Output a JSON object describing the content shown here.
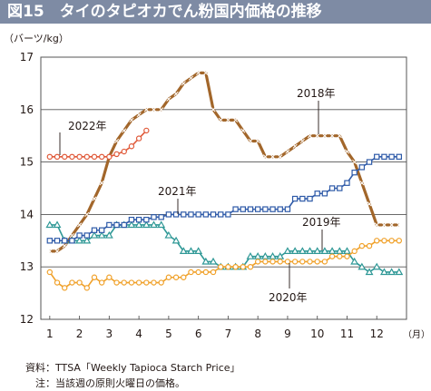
{
  "header": {
    "title": "図15　タイのタピオカでん粉国内価格の推移"
  },
  "notes": {
    "source": "資料：TTSA「Weekly Tapioca Starch Price」",
    "note": "　注：当該週の原則火曜日の価格。"
  },
  "chart_data": {
    "type": "line",
    "title": "図15　タイのタピオカでん粉国内価格の推移",
    "xlabel": "（月）",
    "ylabel": "（バーツ/kg）",
    "xlim": [
      0.7,
      13.0
    ],
    "ylim": [
      12,
      17
    ],
    "yticks": [
      12,
      13,
      14,
      15,
      16,
      17
    ],
    "xticks": [
      "1",
      "2",
      "3",
      "4",
      "5",
      "6",
      "7",
      "8",
      "9",
      "10",
      "11",
      "12"
    ],
    "grid": "horizontal",
    "series": [
      {
        "name": "2018年",
        "color": "#a2662a",
        "marker": "x",
        "points": [
          [
            1,
            13.3
          ],
          [
            1.25,
            13.3
          ],
          [
            1.5,
            13.4
          ],
          [
            1.75,
            13.6
          ],
          [
            2,
            13.8
          ],
          [
            2.25,
            14.0
          ],
          [
            2.5,
            14.3
          ],
          [
            2.75,
            14.6
          ],
          [
            3,
            15.1
          ],
          [
            3.25,
            15.4
          ],
          [
            3.5,
            15.6
          ],
          [
            3.75,
            15.8
          ],
          [
            4,
            15.9
          ],
          [
            4.25,
            16.0
          ],
          [
            4.5,
            16.0
          ],
          [
            4.75,
            16.0
          ],
          [
            5,
            16.2
          ],
          [
            5.25,
            16.3
          ],
          [
            5.5,
            16.5
          ],
          [
            5.75,
            16.6
          ],
          [
            6,
            16.7
          ],
          [
            6.25,
            16.7
          ],
          [
            6.5,
            16.0
          ],
          [
            6.75,
            15.8
          ],
          [
            7,
            15.8
          ],
          [
            7.25,
            15.8
          ],
          [
            7.5,
            15.6
          ],
          [
            7.75,
            15.4
          ],
          [
            8,
            15.4
          ],
          [
            8.25,
            15.1
          ],
          [
            8.5,
            15.1
          ],
          [
            8.75,
            15.1
          ],
          [
            9,
            15.2
          ],
          [
            9.25,
            15.3
          ],
          [
            9.5,
            15.4
          ],
          [
            9.75,
            15.5
          ],
          [
            10,
            15.5
          ],
          [
            10.25,
            15.5
          ],
          [
            10.5,
            15.5
          ],
          [
            10.75,
            15.5
          ],
          [
            11,
            15.2
          ],
          [
            11.25,
            15.0
          ],
          [
            11.5,
            14.6
          ],
          [
            11.75,
            14.2
          ],
          [
            12,
            13.8
          ],
          [
            12.25,
            13.8
          ],
          [
            12.5,
            13.8
          ],
          [
            12.75,
            13.8
          ]
        ]
      },
      {
        "name": "2019年",
        "color": "#2f9896",
        "marker": "triangle",
        "points": [
          [
            1,
            13.8
          ],
          [
            1.25,
            13.8
          ],
          [
            1.5,
            13.5
          ],
          [
            1.75,
            13.5
          ],
          [
            2,
            13.5
          ],
          [
            2.25,
            13.5
          ],
          [
            2.5,
            13.6
          ],
          [
            2.75,
            13.6
          ],
          [
            3,
            13.6
          ],
          [
            3.25,
            13.8
          ],
          [
            3.5,
            13.8
          ],
          [
            3.75,
            13.8
          ],
          [
            4,
            13.8
          ],
          [
            4.25,
            13.8
          ],
          [
            4.5,
            13.8
          ],
          [
            4.75,
            13.8
          ],
          [
            5,
            13.6
          ],
          [
            5.25,
            13.5
          ],
          [
            5.5,
            13.3
          ],
          [
            5.75,
            13.3
          ],
          [
            6,
            13.3
          ],
          [
            6.25,
            13.1
          ],
          [
            6.5,
            13.1
          ],
          [
            6.75,
            13.0
          ],
          [
            7,
            13.0
          ],
          [
            7.25,
            13.0
          ],
          [
            7.5,
            13.0
          ],
          [
            7.75,
            13.2
          ],
          [
            8,
            13.2
          ],
          [
            8.25,
            13.2
          ],
          [
            8.5,
            13.2
          ],
          [
            8.75,
            13.2
          ],
          [
            9,
            13.3
          ],
          [
            9.25,
            13.3
          ],
          [
            9.5,
            13.3
          ],
          [
            9.75,
            13.3
          ],
          [
            10,
            13.3
          ],
          [
            10.25,
            13.3
          ],
          [
            10.5,
            13.3
          ],
          [
            10.75,
            13.3
          ],
          [
            11,
            13.3
          ],
          [
            11.25,
            13.1
          ],
          [
            11.5,
            13.0
          ],
          [
            11.75,
            12.9
          ],
          [
            12,
            13.0
          ],
          [
            12.25,
            12.9
          ],
          [
            12.5,
            12.9
          ],
          [
            12.75,
            12.9
          ]
        ]
      },
      {
        "name": "2020年",
        "color": "#f0a12a",
        "marker": "circle",
        "points": [
          [
            1,
            12.9
          ],
          [
            1.25,
            12.7
          ],
          [
            1.5,
            12.6
          ],
          [
            1.75,
            12.7
          ],
          [
            2,
            12.7
          ],
          [
            2.25,
            12.6
          ],
          [
            2.5,
            12.8
          ],
          [
            2.75,
            12.7
          ],
          [
            3,
            12.8
          ],
          [
            3.25,
            12.7
          ],
          [
            3.5,
            12.7
          ],
          [
            3.75,
            12.7
          ],
          [
            4,
            12.7
          ],
          [
            4.25,
            12.7
          ],
          [
            4.5,
            12.7
          ],
          [
            4.75,
            12.7
          ],
          [
            5,
            12.8
          ],
          [
            5.25,
            12.8
          ],
          [
            5.5,
            12.8
          ],
          [
            5.75,
            12.9
          ],
          [
            6,
            12.9
          ],
          [
            6.25,
            12.9
          ],
          [
            6.5,
            12.9
          ],
          [
            6.75,
            13.0
          ],
          [
            7,
            13.0
          ],
          [
            7.25,
            13.0
          ],
          [
            7.5,
            13.0
          ],
          [
            7.75,
            13.0
          ],
          [
            8,
            13.1
          ],
          [
            8.25,
            13.1
          ],
          [
            8.5,
            13.1
          ],
          [
            8.75,
            13.1
          ],
          [
            9,
            13.1
          ],
          [
            9.25,
            13.1
          ],
          [
            9.5,
            13.1
          ],
          [
            9.75,
            13.1
          ],
          [
            10,
            13.1
          ],
          [
            10.25,
            13.1
          ],
          [
            10.5,
            13.2
          ],
          [
            10.75,
            13.2
          ],
          [
            11,
            13.2
          ],
          [
            11.25,
            13.3
          ],
          [
            11.5,
            13.4
          ],
          [
            11.75,
            13.4
          ],
          [
            12,
            13.5
          ],
          [
            12.25,
            13.5
          ],
          [
            12.5,
            13.5
          ],
          [
            12.75,
            13.5
          ]
        ]
      },
      {
        "name": "2021年",
        "color": "#2e5aa8",
        "marker": "square",
        "points": [
          [
            1,
            13.5
          ],
          [
            1.25,
            13.5
          ],
          [
            1.5,
            13.5
          ],
          [
            1.75,
            13.5
          ],
          [
            2,
            13.6
          ],
          [
            2.25,
            13.6
          ],
          [
            2.5,
            13.7
          ],
          [
            2.75,
            13.7
          ],
          [
            3,
            13.8
          ],
          [
            3.25,
            13.8
          ],
          [
            3.5,
            13.8
          ],
          [
            3.75,
            13.9
          ],
          [
            4,
            13.9
          ],
          [
            4.25,
            13.9
          ],
          [
            4.5,
            13.95
          ],
          [
            4.75,
            13.95
          ],
          [
            5,
            14.0
          ],
          [
            5.25,
            14.0
          ],
          [
            5.5,
            14.0
          ],
          [
            5.75,
            14.0
          ],
          [
            6,
            14.0
          ],
          [
            6.25,
            14.0
          ],
          [
            6.5,
            14.0
          ],
          [
            6.75,
            14.0
          ],
          [
            7,
            14.0
          ],
          [
            7.25,
            14.1
          ],
          [
            7.5,
            14.1
          ],
          [
            7.75,
            14.1
          ],
          [
            8,
            14.1
          ],
          [
            8.25,
            14.1
          ],
          [
            8.5,
            14.1
          ],
          [
            8.75,
            14.1
          ],
          [
            9,
            14.1
          ],
          [
            9.25,
            14.3
          ],
          [
            9.5,
            14.3
          ],
          [
            9.75,
            14.3
          ],
          [
            10,
            14.4
          ],
          [
            10.25,
            14.4
          ],
          [
            10.5,
            14.5
          ],
          [
            10.75,
            14.5
          ],
          [
            11,
            14.6
          ],
          [
            11.25,
            14.8
          ],
          [
            11.5,
            14.9
          ],
          [
            11.75,
            15.0
          ],
          [
            12,
            15.1
          ],
          [
            12.25,
            15.1
          ],
          [
            12.5,
            15.1
          ],
          [
            12.75,
            15.1
          ]
        ]
      },
      {
        "name": "2022年",
        "color": "#e05a3a",
        "marker": "circle",
        "points": [
          [
            1,
            15.1
          ],
          [
            1.25,
            15.1
          ],
          [
            1.5,
            15.1
          ],
          [
            1.75,
            15.1
          ],
          [
            2,
            15.1
          ],
          [
            2.25,
            15.1
          ],
          [
            2.5,
            15.1
          ],
          [
            2.75,
            15.1
          ],
          [
            3,
            15.1
          ],
          [
            3.25,
            15.15
          ],
          [
            3.5,
            15.2
          ],
          [
            3.75,
            15.3
          ],
          [
            4,
            15.45
          ],
          [
            4.25,
            15.6
          ]
        ]
      }
    ],
    "labels": [
      {
        "text": "2022年",
        "series": "2022年"
      },
      {
        "text": "2018年",
        "series": "2018年"
      },
      {
        "text": "2021年",
        "series": "2021年"
      },
      {
        "text": "2019年",
        "series": "2019年"
      },
      {
        "text": "2020年",
        "series": "2020年"
      }
    ]
  }
}
